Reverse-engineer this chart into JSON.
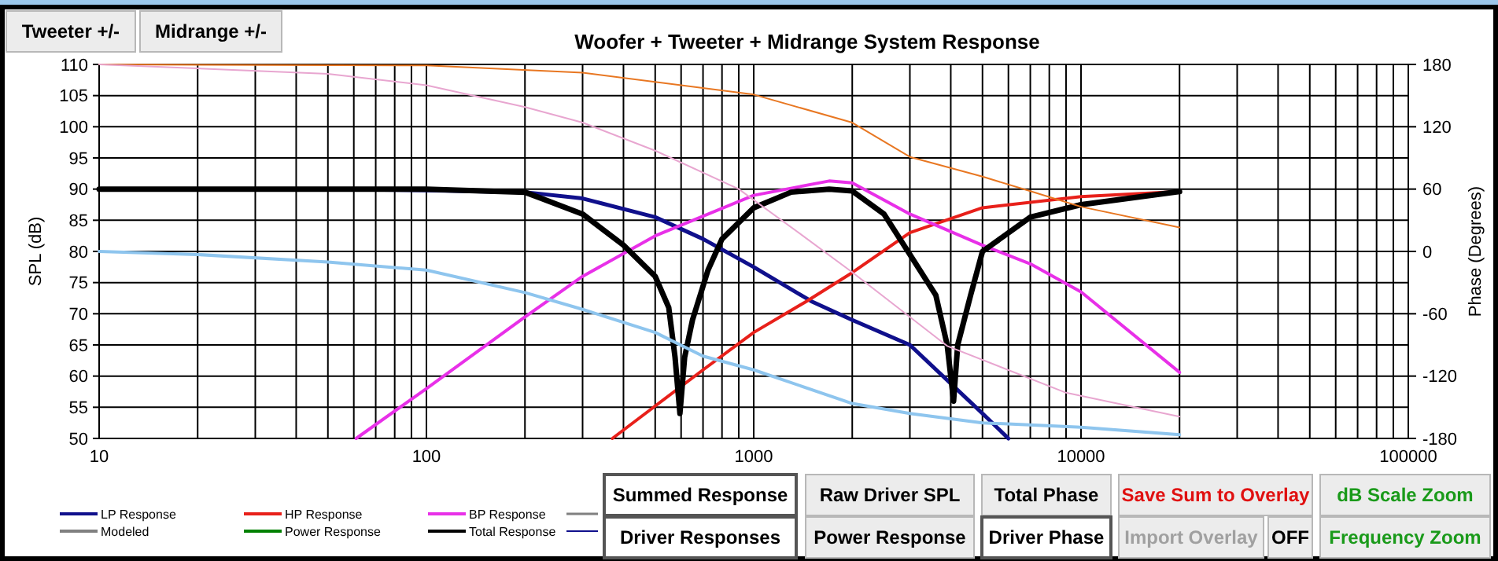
{
  "chart_data": {
    "type": "line",
    "title": "Woofer + Tweeter + Midrange  System Response",
    "ylabel": "SPL (dB)",
    "y2label": "Phase (Degrees)",
    "xlim": [
      10,
      100000
    ],
    "xticks": [
      10,
      100,
      1000,
      10000,
      100000
    ],
    "ylim": [
      50,
      110
    ],
    "yticks": [
      50,
      55,
      60,
      65,
      70,
      75,
      80,
      85,
      90,
      95,
      100,
      105,
      110
    ],
    "y2lim": [
      -180,
      180
    ],
    "y2ticks": [
      -180,
      -120,
      -60,
      0,
      60,
      120,
      180
    ],
    "log": "x",
    "grid": true,
    "legend": "bottom left",
    "marker": "none",
    "line_style": "solid",
    "series": [
      {
        "name": "LP Response",
        "color": "#10108c",
        "x": [
          10,
          50,
          100,
          200,
          300,
          500,
          700,
          1000,
          1500,
          2000,
          3000,
          5000,
          6000
        ],
        "values": [
          90,
          90,
          89.8,
          89.5,
          88.5,
          85.5,
          82,
          77.5,
          72,
          69,
          65,
          54,
          50
        ]
      },
      {
        "name": "HP Response",
        "color": "#e8201a",
        "x": [
          370,
          500,
          700,
          1000,
          1450,
          2000,
          3000,
          5000,
          10000,
          20000
        ],
        "values": [
          50,
          55.2,
          61,
          67,
          72,
          76.6,
          83,
          87,
          88.8,
          89.6
        ]
      },
      {
        "name": "BP Response",
        "color": "#e830e8",
        "x": [
          61,
          100,
          200,
          300,
          500,
          1000,
          1700,
          2000,
          3000,
          5000,
          7000,
          10000,
          20000
        ],
        "values": [
          50,
          58,
          69.5,
          76,
          82.5,
          89,
          91.3,
          91,
          86,
          81,
          78,
          73.5,
          60.6
        ]
      },
      {
        "name": "Modeled",
        "color": "#808080"
      },
      {
        "name": "Power Response",
        "color": "#008000"
      },
      {
        "name": "Total Response",
        "color": "#000000",
        "x": [
          10,
          100,
          200,
          300,
          400,
          500,
          550,
          575,
          595,
          615,
          650,
          725,
          800,
          1000,
          1300,
          1700,
          2000,
          2500,
          3000,
          3600,
          3900,
          4080,
          4200,
          4600,
          5000,
          7000,
          10000,
          20000
        ],
        "values": [
          90,
          90,
          89.5,
          86,
          81,
          76,
          71,
          63,
          54,
          63,
          69,
          77,
          82,
          87,
          89.5,
          90,
          89.7,
          86,
          79.5,
          73,
          65,
          56,
          65,
          73,
          80,
          85.5,
          87.5,
          89.6
        ]
      },
      {
        "color": "#8ec5ee",
        "x": [
          10,
          20,
          50,
          100,
          200,
          300,
          500,
          700,
          1000,
          2000,
          3000,
          5000,
          10000,
          20000
        ],
        "values": [
          80,
          79.5,
          78.3,
          77,
          73.4,
          70.7,
          67,
          63.2,
          61,
          55.6,
          54,
          52.5,
          51.8,
          50.6
        ]
      },
      {
        "color": "#e87722",
        "axis": "y2",
        "x": [
          10,
          100,
          300,
          1000,
          2000,
          3000,
          5000,
          7000,
          10000,
          20000
        ],
        "values": [
          180,
          179,
          172,
          151,
          124,
          91,
          72,
          58,
          43,
          23
        ]
      },
      {
        "color": "#e8a6d0",
        "axis": "y2",
        "x": [
          10,
          50,
          100,
          200,
          300,
          500,
          900,
          1400,
          2000,
          3900,
          9000,
          20000
        ],
        "values": [
          180,
          171,
          160,
          139,
          124,
          97,
          60,
          16,
          -20,
          -91,
          -136,
          -159
        ]
      }
    ],
    "annotations": [
      "Tweeter +/-",
      "Midrange +/-",
      "Summed Response",
      "Raw Driver SPL",
      "Total Phase",
      "Save Sum to Overlay",
      "dB Scale Zoom",
      "Driver Responses",
      "Power Response",
      "Driver Phase",
      "Import Overlay",
      "OFF",
      "Frequency Zoom"
    ]
  }
}
